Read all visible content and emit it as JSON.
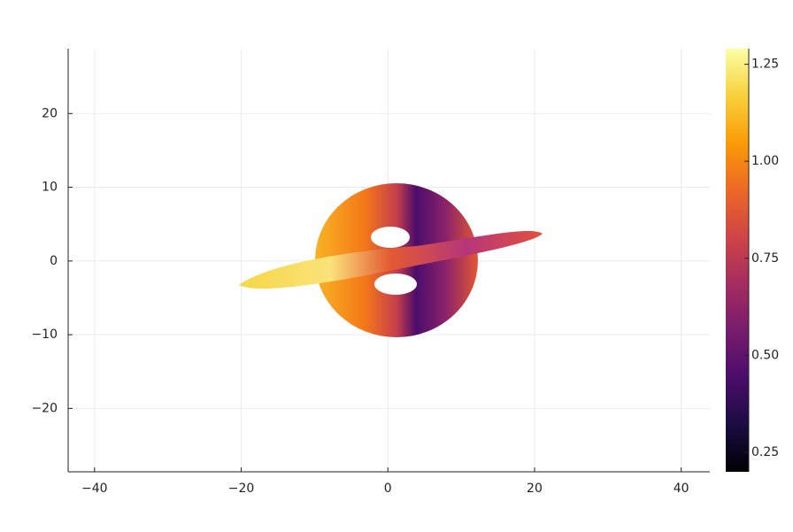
{
  "chart_data": {
    "type": "heatmap",
    "xlim": [
      -43.6,
      43.9
    ],
    "xticks": [
      {
        "value": -40,
        "label": "−40"
      },
      {
        "value": -20,
        "label": "−20"
      },
      0,
      20,
      40
    ],
    "ylim": [
      -28.6,
      28.8
    ],
    "yticks": [
      {
        "value": -20,
        "label": "−20"
      },
      {
        "value": -10,
        "label": "−10"
      },
      0,
      10,
      20
    ],
    "grid": true,
    "colormap": "inferno",
    "clim": [
      0.2,
      1.29
    ],
    "cticks": [
      0.25,
      {
        "value": 0.5,
        "label": "0.50"
      },
      0.75,
      {
        "value": 1,
        "label": "1.00"
      },
      1.25
    ]
  }
}
